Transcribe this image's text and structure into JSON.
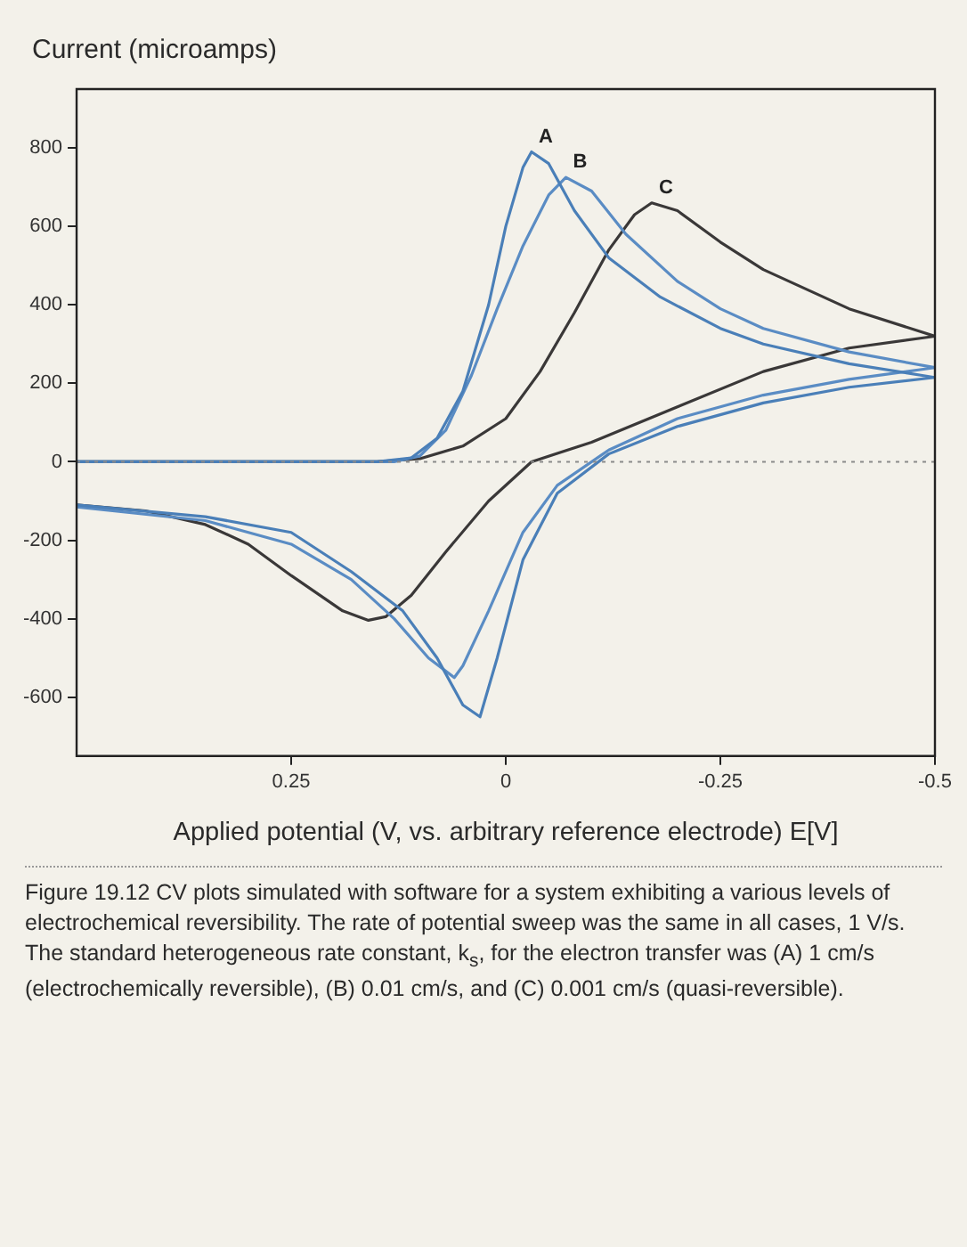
{
  "chart_data": {
    "type": "line",
    "xlabel": "Applied potential (V, vs. arbitrary reference electrode) E[V]",
    "ylabel": "Current (microamps)",
    "xlim": [
      0.5,
      -0.5
    ],
    "xticks": [
      0.25,
      0,
      -0.25,
      -0.5
    ],
    "ylim": [
      -750,
      950
    ],
    "yticks": [
      -600,
      -400,
      -200,
      0,
      200,
      400,
      600,
      800
    ],
    "grid": false,
    "legend": false,
    "marker": "none",
    "line_style": "solid",
    "ref_lines": [
      {
        "axis": "y",
        "value": 0,
        "line_style": "dotted",
        "color": "#8a8a8a"
      }
    ],
    "series": [
      {
        "name": "A",
        "color": "#4a7fb8",
        "x": [
          0.5,
          0.15,
          0.11,
          0.08,
          0.05,
          0.02,
          0,
          -0.02,
          -0.03,
          -0.05,
          -0.08,
          -0.12,
          -0.18,
          -0.25,
          -0.3,
          -0.4,
          -0.5,
          -0.4,
          -0.3,
          -0.2,
          -0.12,
          -0.06,
          -0.02,
          0.01,
          0.03,
          0.05,
          0.08,
          0.12,
          0.18,
          0.25,
          0.35,
          0.5
        ],
        "values": [
          0,
          0,
          10,
          60,
          180,
          400,
          600,
          750,
          790,
          760,
          640,
          520,
          420,
          340,
          300,
          250,
          215,
          190,
          150,
          90,
          20,
          -80,
          -250,
          -500,
          -650,
          -620,
          -500,
          -380,
          -280,
          -180,
          -140,
          -110
        ]
      },
      {
        "name": "B",
        "color": "#5a8cc4",
        "x": [
          0.5,
          0.13,
          0.1,
          0.07,
          0.04,
          0.01,
          -0.02,
          -0.05,
          -0.07,
          -0.1,
          -0.14,
          -0.2,
          -0.25,
          -0.3,
          -0.4,
          -0.5,
          -0.4,
          -0.3,
          -0.2,
          -0.12,
          -0.06,
          -0.02,
          0.02,
          0.05,
          0.06,
          0.09,
          0.13,
          0.18,
          0.25,
          0.35,
          0.5
        ],
        "values": [
          0,
          0,
          15,
          80,
          220,
          390,
          550,
          680,
          725,
          690,
          580,
          460,
          390,
          340,
          280,
          240,
          210,
          170,
          110,
          30,
          -60,
          -180,
          -380,
          -520,
          -550,
          -500,
          -400,
          -300,
          -210,
          -150,
          -115
        ]
      },
      {
        "name": "C",
        "color": "#3a3838",
        "x": [
          0.5,
          0.15,
          0.1,
          0.05,
          0,
          -0.04,
          -0.08,
          -0.12,
          -0.15,
          -0.17,
          -0.2,
          -0.25,
          -0.3,
          -0.4,
          -0.5,
          -0.4,
          -0.3,
          -0.2,
          -0.1,
          -0.03,
          0.02,
          0.07,
          0.11,
          0.14,
          0.16,
          0.19,
          0.25,
          0.3,
          0.35,
          0.42,
          0.5
        ],
        "values": [
          0,
          0,
          8,
          40,
          110,
          230,
          380,
          540,
          630,
          660,
          640,
          560,
          490,
          390,
          320,
          290,
          230,
          140,
          50,
          0,
          -100,
          -230,
          -340,
          -395,
          -404,
          -380,
          -290,
          -210,
          -160,
          -125,
          -110
        ]
      }
    ],
    "annotations": [
      "Figure 19.12 CV plots simulated with software for a system exhibiting a various levels of electrochemical reversibility. The rate of potential sweep was the same in all cases, 1 V/s. The standard heterogeneous rate constant, k$_{s}$, for the electron transfer was (A) 1 cm/s (electrochemically reversible), (B) 0.01 cm/s, and (C) 0.001 cm/s (quasi-reversible)."
    ]
  }
}
